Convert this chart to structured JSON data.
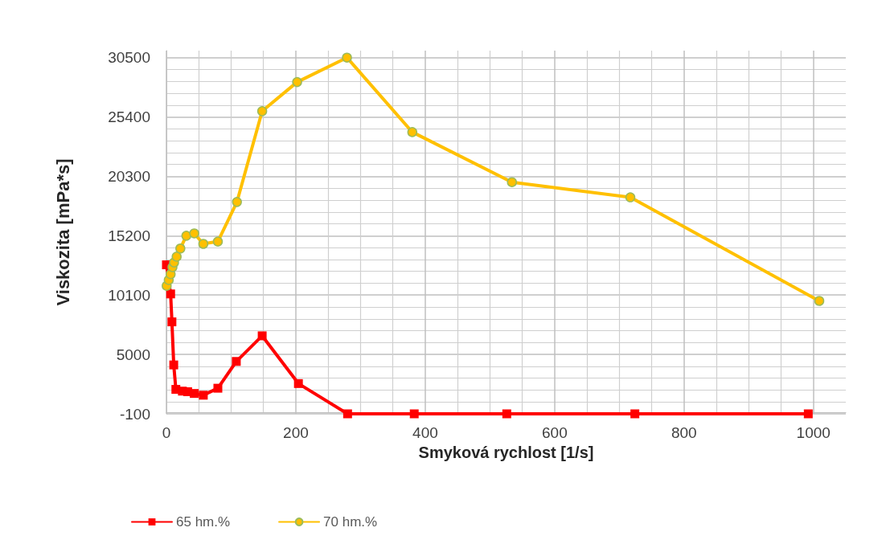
{
  "chart_data": {
    "type": "line",
    "xlabel": "Smyková rychlost [1/s]",
    "ylabel": "Viskozita [mPa*s]",
    "xlim": [
      0,
      1050
    ],
    "xticks": [
      0,
      200,
      400,
      600,
      800,
      1000
    ],
    "ylim": [
      -100,
      31100
    ],
    "yticks": [
      -100,
      5000,
      10100,
      15200,
      20300,
      25400,
      30500
    ],
    "grid": true,
    "legend": "bottom left",
    "line_style": "solid",
    "series": [
      {
        "name": "65 hm.%",
        "color": "#ff0000",
        "marker": "square",
        "x": [
          0,
          6.5,
          8.5,
          11.3,
          14.6,
          24.7,
          32.8,
          43,
          57,
          79.5,
          108,
          148,
          204,
          280,
          383,
          526,
          724,
          992
        ],
        "values": [
          12700,
          10200,
          7800,
          4100,
          2000,
          1850,
          1800,
          1650,
          1500,
          2100,
          4400,
          6600,
          2500,
          -100,
          -100,
          -100,
          -100,
          -100
        ]
      },
      {
        "name": "70 hm.%",
        "color": "#ffc000",
        "marker": "circle",
        "x": [
          0.4,
          3.6,
          6.5,
          9.3,
          11.8,
          15.8,
          21.5,
          30.8,
          43,
          57,
          79.5,
          109,
          148,
          202,
          279,
          380,
          534,
          717,
          1009
        ],
        "values": [
          10900,
          11400,
          11900,
          12500,
          12900,
          13400,
          14100,
          15200,
          15400,
          14500,
          14700,
          18100,
          25900,
          28400,
          30500,
          24100,
          19800,
          18500,
          9600
        ]
      }
    ]
  }
}
